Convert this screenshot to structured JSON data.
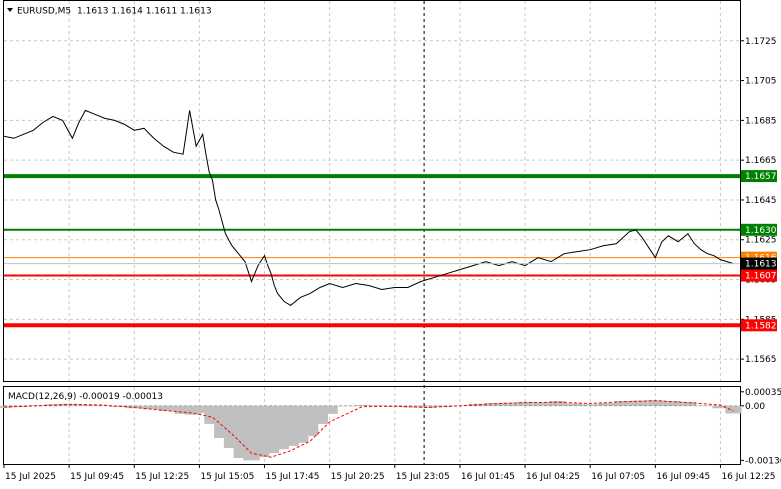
{
  "header": {
    "symbol": "EURUSD,M5",
    "ohlc": "1.1613 1.1614 1.1611 1.1613",
    "menu_icon": "triangle-down-icon"
  },
  "macd_label": "MACD(12,26,9) -0.00019 -0.00013",
  "chart_data": [
    {
      "type": "line",
      "title": "EURUSD,M5",
      "ylim": [
        1.1554,
        1.1745
      ],
      "y_ticks": [
        "1.1725",
        "1.1705",
        "1.1685",
        "1.1665",
        "1.1645",
        "1.1625",
        "1.1605",
        "1.1585",
        "1.1565"
      ],
      "x_ticks": [
        "15 Jul 2025",
        "15 Jul 09:45",
        "15 Jul 12:25",
        "15 Jul 15:05",
        "15 Jul 17:45",
        "15 Jul 20:25",
        "15 Jul 23:05",
        "16 Jul 01:45",
        "16 Jul 04:25",
        "16 Jul 07:05",
        "16 Jul 09:45",
        "16 Jul 12:25"
      ],
      "x_range": [
        0,
        11.3
      ],
      "grid": true,
      "series": [
        {
          "color": "#000000",
          "x": [
            0,
            0.15,
            0.3,
            0.45,
            0.6,
            0.75,
            0.9,
            1.05,
            1.15,
            1.25,
            1.4,
            1.55,
            1.7,
            1.85,
            2.0,
            2.15,
            2.3,
            2.45,
            2.6,
            2.75,
            2.85,
            2.95,
            3.05,
            3.1,
            3.15,
            3.2,
            3.25,
            3.3,
            3.4,
            3.5,
            3.6,
            3.7,
            3.8,
            3.9,
            4.0,
            4.05,
            4.1,
            4.15,
            4.2,
            4.3,
            4.4,
            4.55,
            4.7,
            4.85,
            5.0,
            5.2,
            5.4,
            5.6,
            5.8,
            6.0,
            6.2,
            6.4,
            6.6,
            6.8,
            7.0,
            7.2,
            7.4,
            7.6,
            7.8,
            8.0,
            8.2,
            8.4,
            8.6,
            8.8,
            9.0,
            9.2,
            9.4,
            9.6,
            9.7,
            9.8,
            9.9,
            10.0,
            10.1,
            10.2,
            10.35,
            10.5,
            10.6,
            10.7,
            10.8,
            10.9,
            11.0,
            11.1,
            11.2
          ],
          "y": [
            1.1677,
            1.1676,
            1.1678,
            1.168,
            1.1684,
            1.1687,
            1.1685,
            1.1676,
            1.1684,
            1.169,
            1.1688,
            1.1686,
            1.1685,
            1.1683,
            1.168,
            1.1681,
            1.1676,
            1.1672,
            1.1669,
            1.1668,
            1.169,
            1.1672,
            1.1678,
            1.1668,
            1.1659,
            1.1655,
            1.1645,
            1.164,
            1.1628,
            1.1622,
            1.1618,
            1.1614,
            1.1604,
            1.1612,
            1.1617,
            1.1612,
            1.1608,
            1.1602,
            1.1598,
            1.1594,
            1.1592,
            1.1596,
            1.1598,
            1.1601,
            1.1603,
            1.1601,
            1.1603,
            1.1602,
            1.16,
            1.1601,
            1.1601,
            1.1604,
            1.1606,
            1.1608,
            1.161,
            1.1612,
            1.1614,
            1.1612,
            1.1614,
            1.1612,
            1.1616,
            1.1614,
            1.1618,
            1.1619,
            1.162,
            1.1622,
            1.1623,
            1.1629,
            1.163,
            1.1626,
            1.1621,
            1.1616,
            1.1624,
            1.1627,
            1.1624,
            1.1628,
            1.1623,
            1.162,
            1.1618,
            1.1617,
            1.1615,
            1.1614,
            1.1613
          ]
        }
      ],
      "levels": [
        {
          "value": 1.1657,
          "label": "1.1657",
          "color": "#008000",
          "width": 4
        },
        {
          "value": 1.163,
          "label": "1.1630",
          "color": "#008000",
          "width": 2
        },
        {
          "value": 1.1616,
          "label": "1.1616",
          "color": "#ff7f00",
          "width": 1
        },
        {
          "value": 1.1607,
          "label": "1.1607",
          "color": "#ff0000",
          "width": 2
        },
        {
          "value": 1.1582,
          "label": "1.1582",
          "color": "#ff0000",
          "width": 4
        }
      ],
      "current_price": {
        "value": 1.1613,
        "label": "1.1613",
        "color": "#000000"
      },
      "vertical_marker_x": 6.45
    },
    {
      "type": "bar",
      "title": "MACD(12,26,9) -0.00019 -0.00013",
      "ylim": [
        -0.00145,
        0.00047
      ],
      "y_ticks": [
        "0.00035",
        "0.00",
        "-0.00136"
      ],
      "x_range": [
        0,
        11.3
      ],
      "histogram": {
        "color": "#c0c0c0",
        "x": [
          0.0,
          0.25,
          0.5,
          0.75,
          1.0,
          1.25,
          1.5,
          1.75,
          2.0,
          2.25,
          2.5,
          2.75,
          2.9,
          3.05,
          3.2,
          3.35,
          3.5,
          3.65,
          3.8,
          3.95,
          4.1,
          4.25,
          4.4,
          4.55,
          4.7,
          4.85,
          5.0,
          5.25,
          5.5,
          5.75,
          6.0,
          6.25,
          6.5,
          6.75,
          7.0,
          7.25,
          7.5,
          7.75,
          8.0,
          8.25,
          8.5,
          8.75,
          9.0,
          9.25,
          9.5,
          9.75,
          10.0,
          10.25,
          10.5,
          10.75,
          11.0,
          11.2
        ],
        "values": [
          -5e-05,
          -3e-05,
          2e-05,
          4e-05,
          5e-05,
          3e-05,
          1e-05,
          -3e-05,
          -6e-05,
          -9e-05,
          -0.00013,
          -0.0002,
          -0.00022,
          -0.00018,
          -0.00045,
          -0.0008,
          -0.00105,
          -0.0013,
          -0.00136,
          -0.00128,
          -0.00118,
          -0.00108,
          -0.001,
          -0.00092,
          -0.00075,
          -0.00045,
          -0.0002,
          0.0,
          2e-05,
          1e-05,
          -2e-05,
          -4e-05,
          -5e-05,
          -3e-05,
          1e-05,
          5e-05,
          7e-05,
          8e-05,
          0.0001,
          9e-05,
          0.00012,
          6e-05,
          4e-05,
          7e-05,
          0.00012,
          0.00013,
          0.00014,
          0.00012,
          0.0001,
          1e-05,
          -6e-05,
          -0.00019
        ]
      },
      "signal": {
        "color": "#ff0000",
        "x": [
          0.0,
          0.5,
          1.0,
          1.5,
          2.0,
          2.5,
          2.9,
          3.2,
          3.5,
          3.8,
          4.1,
          4.4,
          4.7,
          5.0,
          5.5,
          6.0,
          6.5,
          7.0,
          7.5,
          8.0,
          8.5,
          9.0,
          9.5,
          10.0,
          10.5,
          11.0,
          11.2
        ],
        "values": [
          -3e-05,
          0.0,
          4e-05,
          2e-05,
          -4e-05,
          -0.00012,
          -0.00018,
          -0.00028,
          -0.0007,
          -0.00118,
          -0.00128,
          -0.00112,
          -0.00088,
          -0.0004,
          -2e-05,
          -1e-05,
          -4e-05,
          0.0,
          5e-05,
          8e-05,
          9e-05,
          6e-05,
          0.0001,
          0.00013,
          8e-05,
          2e-05,
          -0.00013
        ]
      },
      "zero_line": true
    }
  ]
}
